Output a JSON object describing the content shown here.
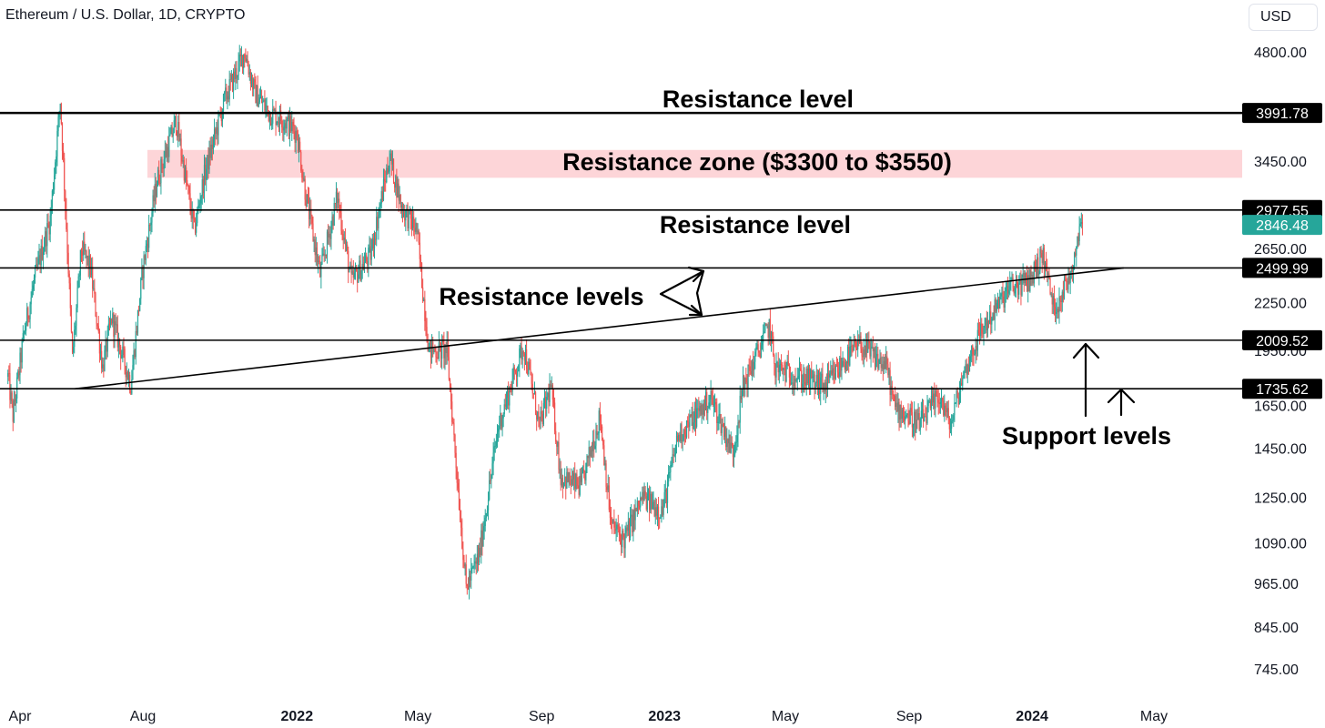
{
  "header": {
    "title": "Ethereum / U.S. Dollar, 1D, CRYPTO",
    "currency": "USD"
  },
  "colors": {
    "up": "#26a69a",
    "down": "#ef5350",
    "zone": "#fdd5d8",
    "level_box": "#000000",
    "last_price": "#26a69a"
  },
  "chart_data": {
    "type": "candlestick",
    "symbol": "Ethereum / U.S. Dollar",
    "interval": "1D",
    "y_scale": "log",
    "ylim": [
      700,
      5200
    ],
    "y_ticks": [
      "4800.00",
      "3450.00",
      "2650.00",
      "2250.00",
      "1950.00",
      "1650.00",
      "1450.00",
      "1250.00",
      "1090.00",
      "965.00",
      "845.00",
      "745.00"
    ],
    "x_ticks": [
      {
        "label": "Apr",
        "date": "2021-04-01",
        "bold": false
      },
      {
        "label": "Aug",
        "date": "2021-08-01",
        "bold": false
      },
      {
        "label": "2022",
        "date": "2022-01-01",
        "bold": true
      },
      {
        "label": "May",
        "date": "2022-05-01",
        "bold": false
      },
      {
        "label": "Sep",
        "date": "2022-09-01",
        "bold": false
      },
      {
        "label": "2023",
        "date": "2023-01-01",
        "bold": true
      },
      {
        "label": "May",
        "date": "2023-05-01",
        "bold": false
      },
      {
        "label": "Sep",
        "date": "2023-09-01",
        "bold": false
      },
      {
        "label": "2024",
        "date": "2024-01-01",
        "bold": true
      },
      {
        "label": "May",
        "date": "2024-05-01",
        "bold": false
      }
    ],
    "xlim": [
      "2021-03-20",
      "2024-05-31"
    ],
    "price_path": [
      [
        "2021-03-20",
        1800
      ],
      [
        "2021-03-25",
        1600
      ],
      [
        "2021-04-05",
        2050
      ],
      [
        "2021-04-15",
        2400
      ],
      [
        "2021-05-01",
        2900
      ],
      [
        "2021-05-11",
        4150
      ],
      [
        "2021-05-19",
        2500
      ],
      [
        "2021-05-23",
        1900
      ],
      [
        "2021-06-01",
        2650
      ],
      [
        "2021-06-10",
        2500
      ],
      [
        "2021-06-22",
        1850
      ],
      [
        "2021-07-01",
        2150
      ],
      [
        "2021-07-20",
        1760
      ],
      [
        "2021-08-01",
        2500
      ],
      [
        "2021-08-15",
        3250
      ],
      [
        "2021-09-03",
        3900
      ],
      [
        "2021-09-21",
        2800
      ],
      [
        "2021-10-01",
        3300
      ],
      [
        "2021-10-21",
        4150
      ],
      [
        "2021-11-10",
        4800
      ],
      [
        "2021-11-20",
        4250
      ],
      [
        "2021-12-04",
        4000
      ],
      [
        "2021-12-20",
        3900
      ],
      [
        "2022-01-01",
        3750
      ],
      [
        "2022-01-10",
        3100
      ],
      [
        "2022-01-24",
        2450
      ],
      [
        "2022-02-10",
        3100
      ],
      [
        "2022-02-24",
        2400
      ],
      [
        "2022-03-15",
        2600
      ],
      [
        "2022-04-03",
        3500
      ],
      [
        "2022-04-15",
        3000
      ],
      [
        "2022-04-30",
        2800
      ],
      [
        "2022-05-12",
        1950
      ],
      [
        "2022-05-30",
        1950
      ],
      [
        "2022-06-18",
        950
      ],
      [
        "2022-07-01",
        1050
      ],
      [
        "2022-07-20",
        1550
      ],
      [
        "2022-08-14",
        1980
      ],
      [
        "2022-08-30",
        1550
      ],
      [
        "2022-09-10",
        1750
      ],
      [
        "2022-09-20",
        1330
      ],
      [
        "2022-10-10",
        1290
      ],
      [
        "2022-10-29",
        1600
      ],
      [
        "2022-11-09",
        1150
      ],
      [
        "2022-11-22",
        1100
      ],
      [
        "2022-12-10",
        1250
      ],
      [
        "2022-12-30",
        1200
      ],
      [
        "2023-01-14",
        1500
      ],
      [
        "2023-02-16",
        1690
      ],
      [
        "2023-03-10",
        1430
      ],
      [
        "2023-03-20",
        1750
      ],
      [
        "2023-04-15",
        2100
      ],
      [
        "2023-04-21",
        1850
      ],
      [
        "2023-05-15",
        1800
      ],
      [
        "2023-06-10",
        1750
      ],
      [
        "2023-06-30",
        1900
      ],
      [
        "2023-07-14",
        1980
      ],
      [
        "2023-08-10",
        1850
      ],
      [
        "2023-08-17",
        1650
      ],
      [
        "2023-09-11",
        1560
      ],
      [
        "2023-10-01",
        1700
      ],
      [
        "2023-10-12",
        1550
      ],
      [
        "2023-10-24",
        1800
      ],
      [
        "2023-11-10",
        2050
      ],
      [
        "2023-12-09",
        2350
      ],
      [
        "2023-12-28",
        2400
      ],
      [
        "2024-01-12",
        2600
      ],
      [
        "2024-01-23",
        2200
      ],
      [
        "2024-02-08",
        2450
      ],
      [
        "2024-02-20",
        2950
      ]
    ],
    "last_price": "2846.48",
    "horizontal_levels": [
      {
        "value": 3991.78,
        "label": "3991.78",
        "kind": "resistance"
      },
      {
        "value": 2977.55,
        "label": "2977.55",
        "kind": "resistance"
      },
      {
        "value": 2499.99,
        "label": "2499.99",
        "kind": "resistance"
      },
      {
        "value": 2009.52,
        "label": "2009.52",
        "kind": "support"
      },
      {
        "value": 1735.62,
        "label": "1735.62",
        "kind": "support"
      }
    ],
    "resistance_zone": {
      "low": 3300,
      "high": 3550
    },
    "trendline": [
      [
        "2021-05-25",
        1735
      ],
      [
        "2024-04-01",
        2499.99
      ]
    ],
    "annotations": {
      "top_level": "Resistance level",
      "zone": "Resistance zone ($3300 to $3550)",
      "mid_level": "Resistance level",
      "levels": "Resistance levels",
      "support": "Support levels"
    }
  }
}
